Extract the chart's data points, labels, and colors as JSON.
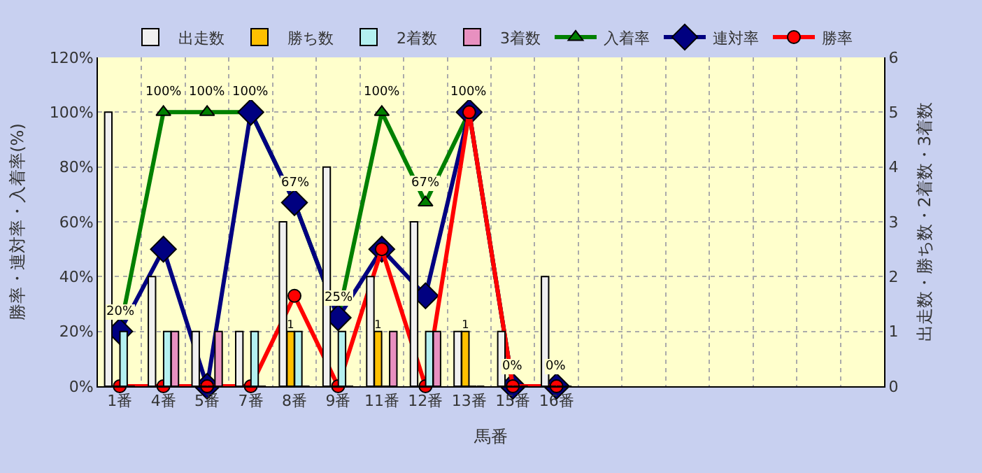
{
  "chart_data": {
    "type": "bar",
    "categories": [
      "1番",
      "4番",
      "5番",
      "7番",
      "8番",
      "9番",
      "11番",
      "12番",
      "13番",
      "15番",
      "16番",
      null,
      null,
      null,
      null,
      null,
      null,
      null
    ],
    "xlabel": "馬番",
    "ylabel": "勝率・連対率・入着率(%)",
    "y2label": "出走数・勝ち数・2着数・3着数",
    "series": [
      {
        "name": "出走数",
        "axis": "y2",
        "color": "#f0f0f0",
        "values": [
          5,
          2,
          1,
          1,
          3,
          4,
          2,
          3,
          1,
          1,
          2,
          null,
          null,
          null,
          null,
          null,
          null,
          null
        ]
      },
      {
        "name": "勝ち数",
        "axis": "y2",
        "color": "#ffc000",
        "values": [
          0,
          0,
          0,
          0,
          1,
          0,
          1,
          0,
          1,
          0,
          0,
          null,
          null,
          null,
          null,
          null,
          null,
          null
        ],
        "value_labels": [
          null,
          null,
          null,
          null,
          "1",
          null,
          "1",
          null,
          "1",
          null,
          null,
          null,
          null,
          null,
          null,
          null,
          null,
          null
        ]
      },
      {
        "name": "2着数",
        "axis": "y2",
        "color": "#b4f0f0",
        "values": [
          1,
          1,
          0,
          1,
          1,
          1,
          0,
          1,
          0,
          0,
          0,
          null,
          null,
          null,
          null,
          null,
          null,
          null
        ]
      },
      {
        "name": "3着数",
        "axis": "y2",
        "color": "#e890c0",
        "values": [
          0,
          1,
          1,
          0,
          0,
          0,
          1,
          1,
          0,
          0,
          0,
          null,
          null,
          null,
          null,
          null,
          null,
          null
        ]
      },
      {
        "name": "入着率",
        "type": "line",
        "color": "#008000",
        "marker": "triangle",
        "values": [
          20,
          100,
          100,
          100,
          67,
          25,
          100,
          67,
          100,
          0,
          0,
          null,
          null,
          null,
          null,
          null,
          null,
          null
        ],
        "value_labels": [
          "20%",
          "100%",
          "100%",
          "100%",
          "67%",
          "25%",
          "100%",
          "67%",
          "100%",
          "0%",
          "0%",
          null,
          null,
          null,
          null,
          null,
          null,
          null
        ]
      },
      {
        "name": "連対率",
        "type": "line",
        "color": "#000080",
        "marker": "diamond",
        "values": [
          20,
          50,
          0,
          100,
          67,
          25,
          50,
          33,
          100,
          0,
          0,
          null,
          null,
          null,
          null,
          null,
          null,
          null
        ]
      },
      {
        "name": "勝率",
        "type": "line",
        "color": "#ff0000",
        "marker": "circle",
        "values": [
          0,
          0,
          0,
          0,
          33,
          0,
          50,
          0,
          100,
          0,
          0,
          null,
          null,
          null,
          null,
          null,
          null,
          null
        ]
      }
    ],
    "ylim": [
      0,
      120
    ],
    "yticks": [
      {
        "value": 0,
        "label": "0%"
      },
      {
        "value": 20,
        "label": "20%"
      },
      {
        "value": 40,
        "label": "40%"
      },
      {
        "value": 60,
        "label": "60%"
      },
      {
        "value": 80,
        "label": "80%"
      },
      {
        "value": 100,
        "label": "100%"
      },
      {
        "value": 120,
        "label": "120%"
      }
    ],
    "y2lim": [
      0,
      6
    ],
    "y2ticks": [
      0,
      1,
      2,
      3,
      4,
      5,
      6
    ],
    "grid": true,
    "legend": "top"
  }
}
